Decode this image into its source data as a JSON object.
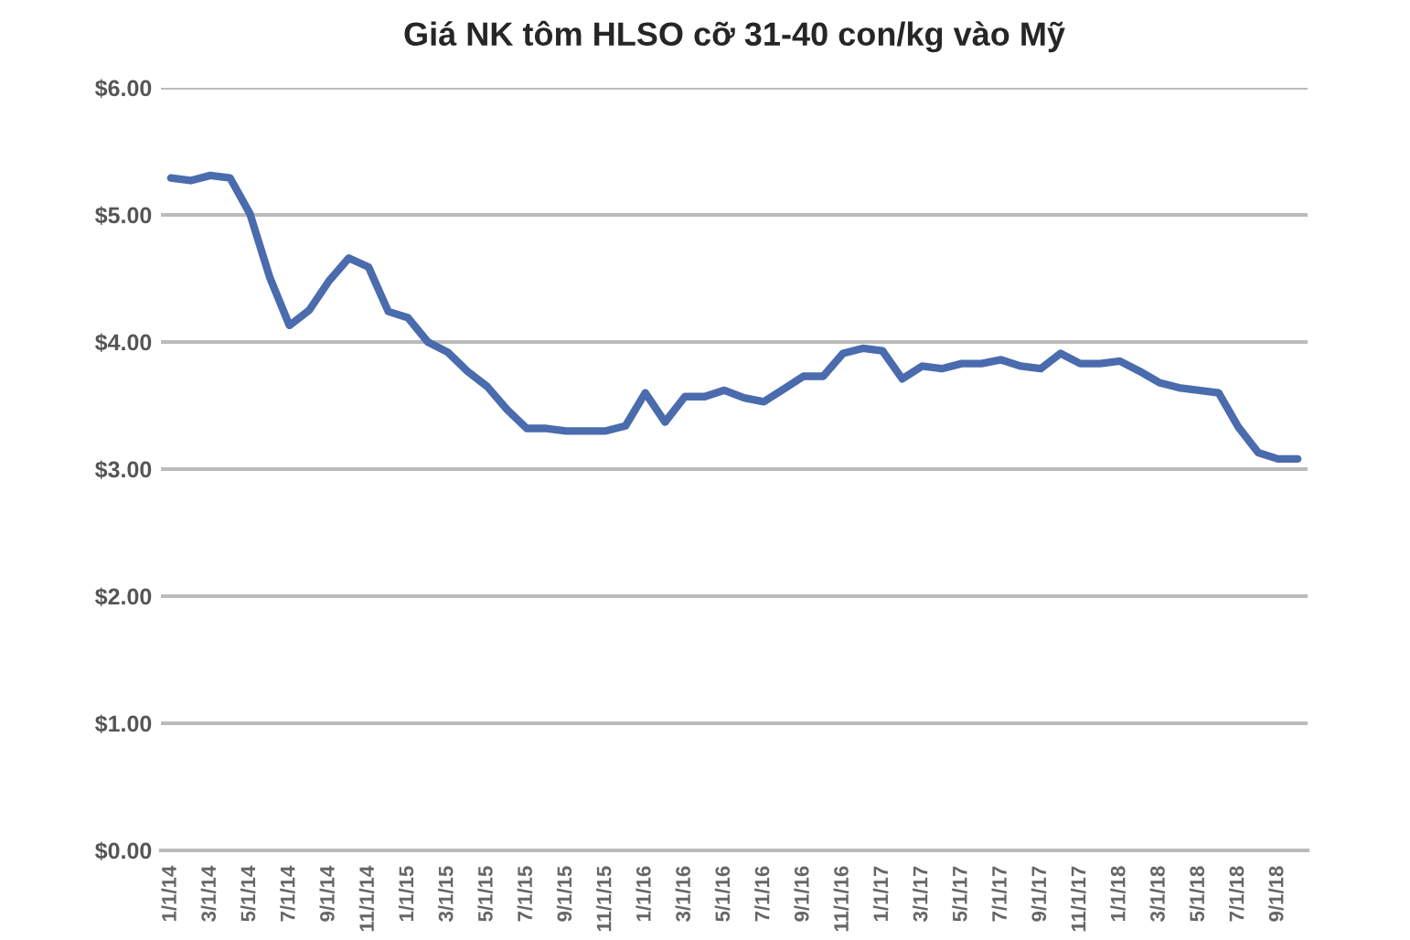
{
  "chart_data": {
    "type": "line",
    "title": "Giá NK tôm HLSO cỡ 31-40 con/kg vào Mỹ",
    "categories": [
      "1/1/14",
      null,
      "3/1/14",
      null,
      "5/1/14",
      null,
      "7/1/14",
      null,
      "9/1/14",
      null,
      "11/1/14",
      null,
      "1/1/15",
      null,
      "3/1/15",
      null,
      "5/1/15",
      null,
      "7/1/15",
      null,
      "9/1/15",
      null,
      "11/1/15",
      null,
      "1/1/16",
      null,
      "3/1/16",
      null,
      "5/1/16",
      null,
      "7/1/16",
      null,
      "9/1/16",
      null,
      "11/1/16",
      null,
      "1/1/17",
      null,
      "3/1/17",
      null,
      "5/1/17",
      null,
      "7/1/17",
      null,
      "9/1/17",
      null,
      "11/1/17",
      null,
      "1/1/18",
      null,
      "3/1/18",
      null,
      "5/1/18",
      null,
      "7/1/18",
      null,
      "9/1/18",
      null
    ],
    "series": [
      {
        "color": "#4a6bad",
        "values": [
          5.29,
          5.27,
          5.31,
          5.29,
          5.01,
          4.51,
          4.13,
          4.25,
          4.48,
          4.66,
          4.59,
          4.24,
          4.19,
          4.0,
          3.92,
          3.77,
          3.65,
          3.47,
          3.32,
          3.32,
          3.3,
          3.3,
          3.3,
          3.34,
          3.6,
          3.37,
          3.57,
          3.57,
          3.62,
          3.56,
          3.53,
          3.63,
          3.73,
          3.73,
          3.91,
          3.95,
          3.93,
          3.71,
          3.81,
          3.79,
          3.83,
          3.83,
          3.86,
          3.81,
          3.79,
          3.91,
          3.83,
          3.83,
          3.85,
          3.77,
          3.68,
          3.64,
          3.62,
          3.6,
          3.33,
          3.13,
          3.08,
          3.08
        ]
      }
    ],
    "ylim": [
      0,
      6
    ],
    "yticks": [
      {
        "value": 0,
        "label": "$0.00"
      },
      {
        "value": 1,
        "label": "$1.00"
      },
      {
        "value": 2,
        "label": "$2.00"
      },
      {
        "value": 3,
        "label": "$3.00"
      },
      {
        "value": 4,
        "label": "$4.00"
      },
      {
        "value": 5,
        "label": "$5.00"
      },
      {
        "value": 6,
        "label": "$6.00"
      }
    ],
    "grid": "y",
    "marker": "none",
    "line_style": "solid"
  }
}
